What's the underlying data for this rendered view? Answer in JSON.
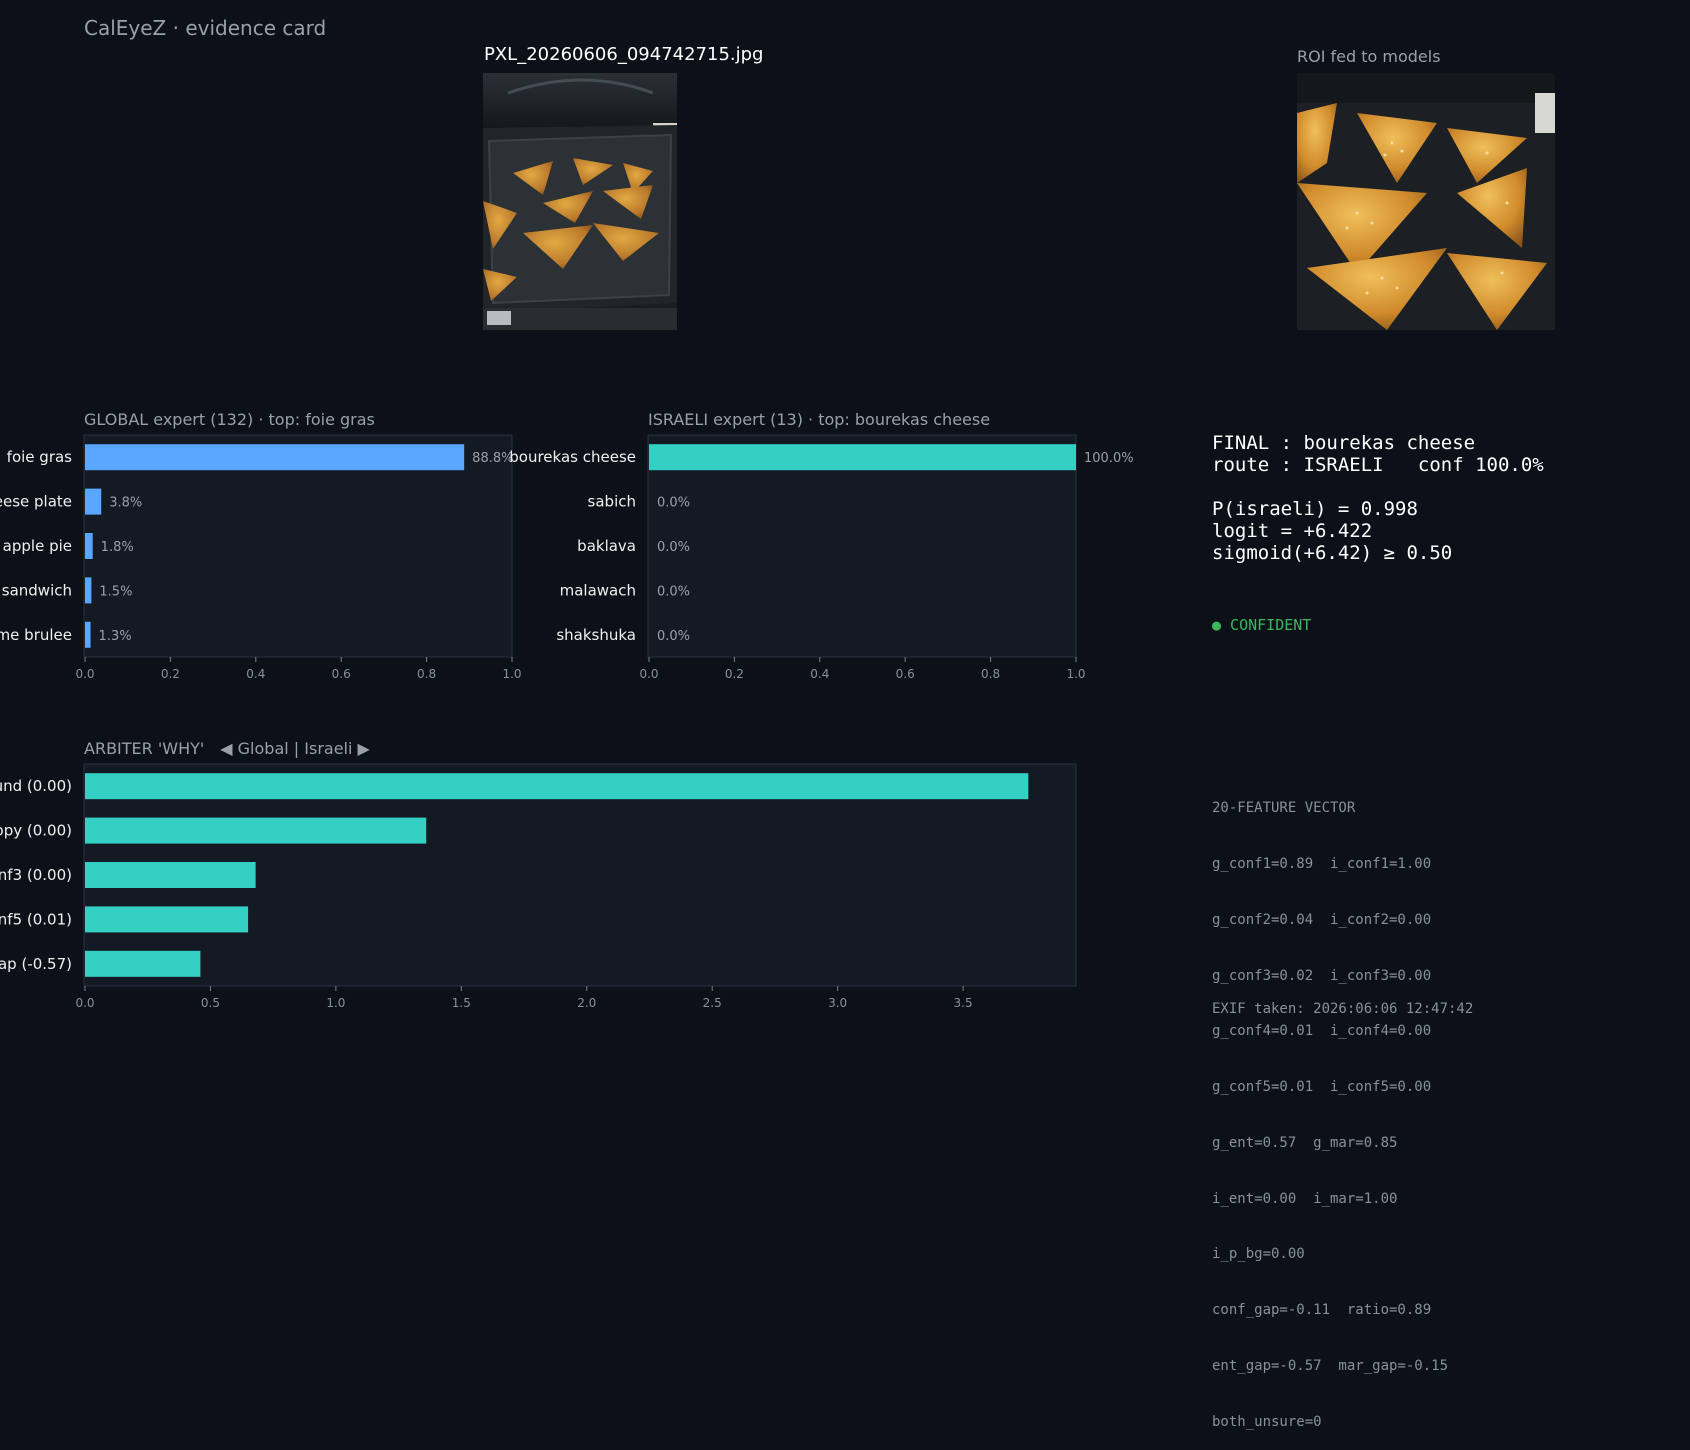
{
  "header": {
    "app_title": "CalEyeZ · evidence card"
  },
  "image": {
    "filename": "PXL_20260606_094742715.jpg"
  },
  "roi": {
    "label": "ROI fed to models"
  },
  "colors": {
    "global_bar": "#58a6ff",
    "israeli_bar": "#35d0c4",
    "arbiter_bar": "#35d0c4",
    "confident": "#3cb85c",
    "panel_bg": "#141a24",
    "page_bg": "#0c1119"
  },
  "global": {
    "title": "GLOBAL expert (132)  ·  top: foie gras"
  },
  "israeli": {
    "title": "ISRAELI expert (13)  ·  top: bourekas cheese"
  },
  "arbiter": {
    "title": "ARBITER 'WHY'",
    "legend": "◀ Global   |   Israeli ▶"
  },
  "final": {
    "line1": "FINAL : bourekas cheese",
    "line2": "route : ISRAELI   conf 100.0%",
    "line3": "P(israeli) = 0.998",
    "line4": "logit = +6.422",
    "line5": "sigmoid(+6.42) ≥ 0.50",
    "status": "● CONFIDENT"
  },
  "feature_vector": {
    "title": "20-FEATURE VECTOR",
    "lines": [
      "g_conf1=0.89  i_conf1=1.00",
      "g_conf2=0.04  i_conf2=0.00",
      "g_conf3=0.02  i_conf3=0.00",
      "g_conf4=0.01  i_conf4=0.00",
      "g_conf5=0.01  i_conf5=0.00",
      "g_ent=0.57  g_mar=0.85",
      "i_ent=0.00  i_mar=1.00",
      "i_p_bg=0.00",
      "conf_gap=-0.11  ratio=0.89",
      "ent_gap=-0.57  mar_gap=-0.15",
      "both_unsure=0"
    ]
  },
  "exif": {
    "taken": "EXIF taken: 2026:06:06 12:47:42"
  },
  "chart_data": [
    {
      "type": "bar",
      "orientation": "horizontal",
      "title": "GLOBAL expert (132)  ·  top: foie gras",
      "categories": [
        "foie gras",
        "eese plate",
        "apple pie",
        "sandwich",
        "me brulee"
      ],
      "values": [
        0.888,
        0.038,
        0.018,
        0.015,
        0.013
      ],
      "value_labels": [
        "88.8%",
        "3.8%",
        "1.8%",
        "1.5%",
        "1.3%"
      ],
      "xlim": [
        0,
        1
      ],
      "xticks": [
        "0.0",
        "0.2",
        "0.4",
        "0.6",
        "0.8",
        "1.0"
      ],
      "color": "#58a6ff"
    },
    {
      "type": "bar",
      "orientation": "horizontal",
      "title": "ISRAELI expert (13)  ·  top: bourekas cheese",
      "categories": [
        "bourekas cheese",
        "sabich",
        "baklava",
        "malawach",
        "shakshuka"
      ],
      "values": [
        1.0,
        0.0,
        0.0,
        0.0,
        0.0
      ],
      "value_labels": [
        "100.0%",
        "0.0%",
        "0.0%",
        "0.0%",
        "0.0%"
      ],
      "xlim": [
        0,
        1
      ],
      "xticks": [
        "0.0",
        "0.2",
        "0.4",
        "0.6",
        "0.8",
        "1.0"
      ],
      "color": "#35d0c4"
    },
    {
      "type": "bar",
      "orientation": "horizontal",
      "title": "ARBITER 'WHY'",
      "categories": [
        "und (0.00)",
        "ropy (0.00)",
        "onf3 (0.00)",
        "onf5 (0.01)",
        "gap (-0.57)"
      ],
      "values": [
        3.76,
        1.36,
        0.68,
        0.65,
        0.46
      ],
      "xlim": [
        0,
        3.95
      ],
      "xticks": [
        "0.0",
        "0.5",
        "1.0",
        "1.5",
        "2.0",
        "2.5",
        "3.0",
        "3.5"
      ],
      "xtick_values": [
        0,
        0.5,
        1.0,
        1.5,
        2.0,
        2.5,
        3.0,
        3.5
      ],
      "color": "#35d0c4"
    }
  ]
}
